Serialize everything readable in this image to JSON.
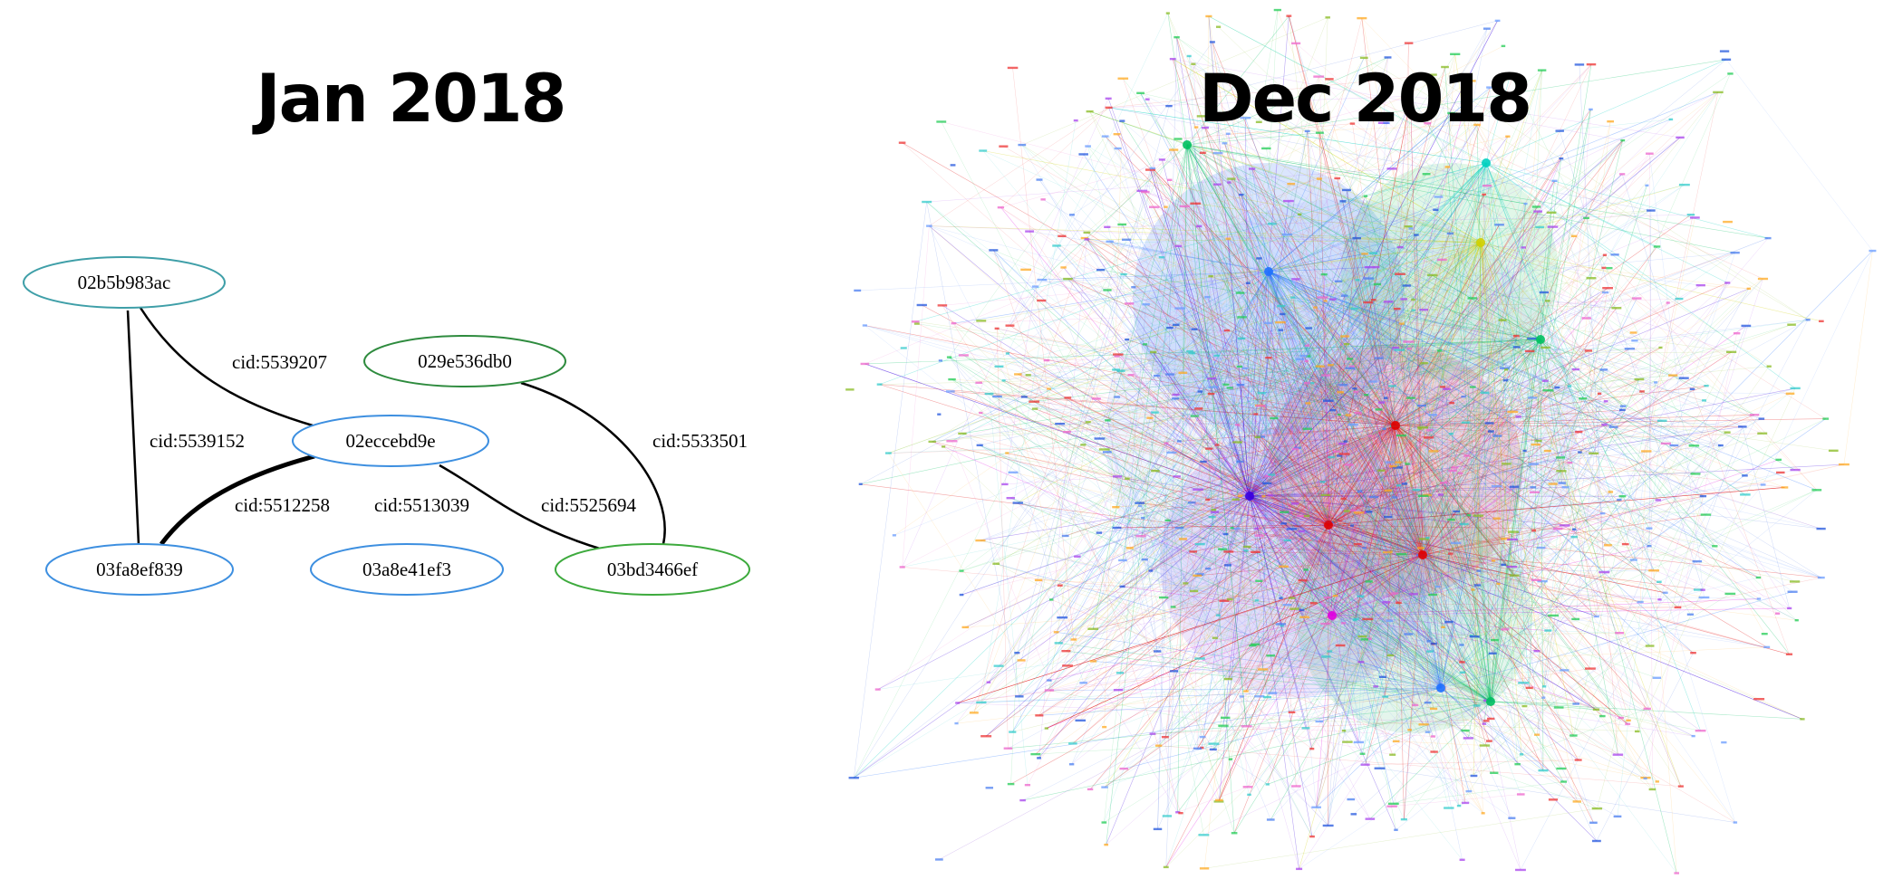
{
  "left_panel": {
    "title": "Jan 2018",
    "nodes": [
      {
        "id": "n1",
        "label": "02b5b983ac",
        "color": "#3f9fa8"
      },
      {
        "id": "n2",
        "label": "029e536db0",
        "color": "#2e8b3e"
      },
      {
        "id": "n3",
        "label": "02eccebd9e",
        "color": "#3d8fe0"
      },
      {
        "id": "n4",
        "label": "03fa8ef839",
        "color": "#3d8fe0"
      },
      {
        "id": "n5",
        "label": "03a8e41ef3",
        "color": "#3d8fe0"
      },
      {
        "id": "n6",
        "label": "03bd3466ef",
        "color": "#3daa3d"
      }
    ],
    "edges": [
      {
        "id": "e1",
        "from": "n1",
        "to": "n3",
        "label": "cid:5539207",
        "weight": "normal"
      },
      {
        "id": "e2",
        "from": "n1",
        "to": "n4",
        "label": "cid:5539152",
        "weight": "normal"
      },
      {
        "id": "e3",
        "from": "n3",
        "to": "n4",
        "label": "cid:5512258",
        "weight": "bold"
      },
      {
        "id": "e4",
        "from": "n3",
        "to": "n6",
        "label": "cid:5525694",
        "weight": "normal"
      },
      {
        "id": "e5",
        "from": "n2",
        "to": "n6",
        "label": "cid:5533501",
        "weight": "normal"
      }
    ],
    "extra_labels": [
      {
        "id": "l1",
        "label": "cid:5513039"
      }
    ]
  },
  "right_panel": {
    "title": "Dec 2018",
    "hub_colors": [
      "#3a00e0",
      "#e00000",
      "#d0d000",
      "#00c060",
      "#2070ff",
      "#e000e0",
      "#00d0c0"
    ],
    "palette": [
      "#4a7df0",
      "#6a9cff",
      "#22cc55",
      "#ee3333",
      "#aa44ee",
      "#ffaa22",
      "#33cccc",
      "#ee66cc",
      "#88bb22",
      "#2255dd"
    ]
  }
}
